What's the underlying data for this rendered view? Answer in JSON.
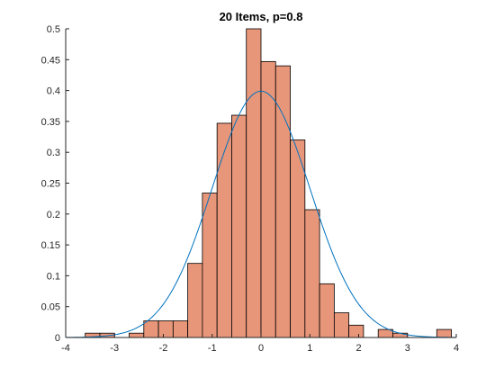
{
  "chart_data": {
    "type": "bar",
    "title": "20 Items, p=0.8",
    "xlabel": "",
    "ylabel": "",
    "xlim": [
      -4,
      4
    ],
    "ylim": [
      0,
      0.5
    ],
    "xticks": [
      -4,
      -3,
      -2,
      -1,
      0,
      1,
      2,
      3,
      4
    ],
    "yticks": [
      0,
      0.05,
      0.1,
      0.15,
      0.2,
      0.25,
      0.3,
      0.35,
      0.4,
      0.45,
      0.5
    ],
    "grid": false,
    "legend": "none",
    "histogram": {
      "bin_width": 0.3,
      "bin_edges": [
        -3.6,
        -3.3,
        -3.0,
        -2.7,
        -2.4,
        -2.1,
        -1.8,
        -1.5,
        -1.2,
        -0.9,
        -0.6,
        -0.3,
        0.0,
        0.3,
        0.6,
        0.9,
        1.2,
        1.5,
        1.8,
        2.1,
        2.4,
        2.7,
        3.0,
        3.3,
        3.6,
        3.9
      ],
      "values": [
        0.007,
        0.007,
        0.0,
        0.007,
        0.027,
        0.027,
        0.027,
        0.12,
        0.234,
        0.347,
        0.36,
        0.5,
        0.447,
        0.44,
        0.32,
        0.207,
        0.087,
        0.04,
        0.02,
        0.0,
        0.013,
        0.007,
        0.0,
        0.0,
        0.013
      ],
      "fill_color": "#e8967a",
      "edge_color": "#000000"
    },
    "series": [
      {
        "type": "line",
        "function": "standard-normal-pdf",
        "mean": 0,
        "sd": 1,
        "color": "#0072bd"
      }
    ],
    "axis_color": "#262626"
  }
}
